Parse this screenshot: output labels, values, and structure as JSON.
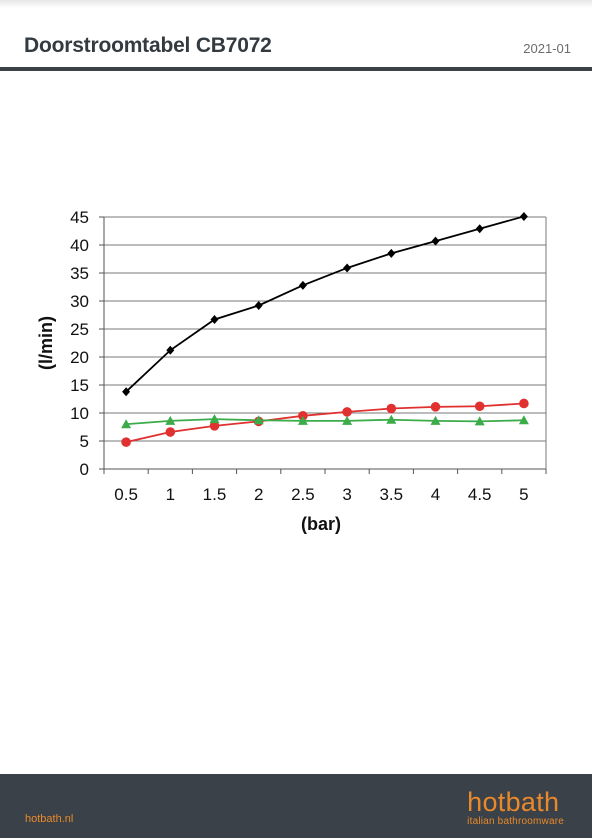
{
  "header": {
    "title": "Doorstroomtabel CB7072",
    "date": "2021-01"
  },
  "footer": {
    "url": "hotbath.nl",
    "brand": "hotbath",
    "tagline": "italian bathroomware"
  },
  "colors": {
    "brand_orange": "#e8892b",
    "footer_bg": "#3b4148",
    "series_black": "#000000",
    "series_red": "#e03030",
    "series_green": "#3cab4a"
  },
  "chart_data": {
    "type": "line",
    "title": "",
    "xlabel": "(bar)",
    "ylabel": "(l/min)",
    "x": [
      "0.5",
      "1",
      "1.5",
      "2",
      "2.5",
      "3",
      "3.5",
      "4",
      "4.5",
      "5"
    ],
    "ylim": [
      0,
      45
    ],
    "yticks": [
      0,
      5,
      10,
      15,
      20,
      25,
      30,
      35,
      40,
      45
    ],
    "grid": true,
    "legend": "none",
    "series": [
      {
        "marker": "diamond",
        "color": "#000000",
        "values": [
          13.8,
          21.2,
          26.7,
          29.2,
          32.8,
          35.9,
          38.5,
          40.7,
          42.9,
          45.1
        ]
      },
      {
        "marker": "circle",
        "color": "#e03030",
        "values": [
          4.8,
          6.6,
          7.7,
          8.5,
          9.5,
          10.2,
          10.8,
          11.1,
          11.2,
          11.7
        ]
      },
      {
        "marker": "triangle",
        "color": "#3cab4a",
        "values": [
          8.0,
          8.6,
          8.9,
          8.7,
          8.6,
          8.6,
          8.8,
          8.6,
          8.5,
          8.7
        ]
      }
    ]
  }
}
